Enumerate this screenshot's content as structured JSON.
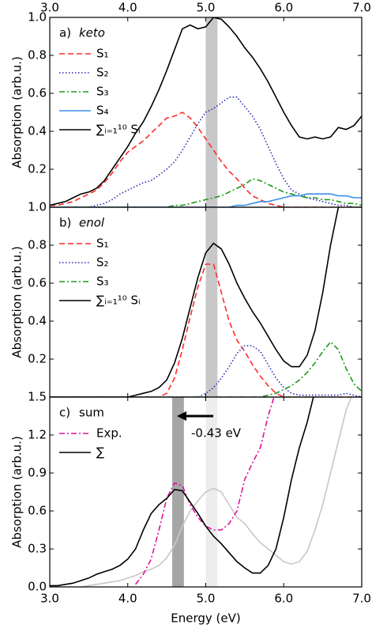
{
  "chart_data": [
    {
      "type": "line",
      "panel_label": "a)",
      "title": "keto",
      "ylabel": "Absorption (arb.u.)",
      "xlim": [
        3,
        7
      ],
      "xticks": [
        {
          "value": 3,
          "label": "3.0"
        },
        {
          "value": 4,
          "label": "4.0"
        },
        {
          "value": 5,
          "label": "5.0"
        },
        {
          "value": 6,
          "label": "6.0"
        },
        {
          "value": 7,
          "label": "7.0"
        }
      ],
      "ylim": [
        0,
        1
      ],
      "yticks": [
        0.2,
        0.4,
        0.6,
        0.8,
        {
          "value": 1,
          "label": "1.0"
        }
      ],
      "bands": [
        {
          "xlim": [
            5.0,
            5.15
          ],
          "color": "#b0b0b0"
        }
      ],
      "x": [
        3.0,
        3.1,
        3.2,
        3.3,
        3.4,
        3.5,
        3.6,
        3.7,
        3.8,
        3.9,
        4.0,
        4.1,
        4.2,
        4.3,
        4.4,
        4.5,
        4.6,
        4.7,
        4.8,
        4.9,
        5.0,
        5.1,
        5.2,
        5.3,
        5.4,
        5.5,
        5.6,
        5.7,
        5.8,
        5.9,
        6.0,
        6.1,
        6.2,
        6.3,
        6.4,
        6.5,
        6.6,
        6.7,
        6.8,
        6.9,
        7.0
      ],
      "series": [
        {
          "name": "S₁",
          "color": "#ff2a2a",
          "style": "dashed",
          "values": [
            0.01,
            0.01,
            0.02,
            0.03,
            0.05,
            0.07,
            0.09,
            0.13,
            0.18,
            0.24,
            0.29,
            0.32,
            0.35,
            0.39,
            0.43,
            0.47,
            0.48,
            0.5,
            0.47,
            0.42,
            0.36,
            0.3,
            0.24,
            0.19,
            0.15,
            0.1,
            0.06,
            0.04,
            0.02,
            0.01,
            0,
            0,
            0,
            0,
            0,
            0,
            0,
            0,
            0,
            0,
            0
          ]
        },
        {
          "name": "S₂",
          "color": "#2a2ab8",
          "style": "dotted",
          "values": [
            0,
            0,
            0,
            0,
            0,
            0,
            0.01,
            0.02,
            0.04,
            0.07,
            0.09,
            0.11,
            0.13,
            0.14,
            0.17,
            0.2,
            0.24,
            0.3,
            0.37,
            0.44,
            0.5,
            0.52,
            0.55,
            0.58,
            0.58,
            0.53,
            0.48,
            0.41,
            0.32,
            0.23,
            0.15,
            0.09,
            0.07,
            0.05,
            0.04,
            0.03,
            0.02,
            0.01,
            0.01,
            0,
            0
          ]
        },
        {
          "name": "S₃",
          "color": "#1a9a1a",
          "style": "dashdot",
          "values": [
            0,
            0,
            0,
            0,
            0,
            0,
            0,
            0,
            0,
            0,
            0,
            0,
            0,
            0,
            0,
            0,
            0.01,
            0.01,
            0.02,
            0.03,
            0.04,
            0.05,
            0.06,
            0.08,
            0.1,
            0.12,
            0.15,
            0.14,
            0.12,
            0.1,
            0.08,
            0.07,
            0.06,
            0.05,
            0.05,
            0.04,
            0.04,
            0.03,
            0.02,
            0.02,
            0.01
          ]
        },
        {
          "name": "S₄",
          "color": "#3a8ee8",
          "style": "solid",
          "values": [
            0,
            0,
            0,
            0,
            0,
            0,
            0,
            0,
            0,
            0,
            0,
            0,
            0,
            0,
            0,
            0,
            0,
            0,
            0,
            0,
            0,
            0,
            0,
            0,
            0.01,
            0.01,
            0.02,
            0.03,
            0.03,
            0.04,
            0.05,
            0.06,
            0.06,
            0.07,
            0.07,
            0.07,
            0.07,
            0.06,
            0.06,
            0.05,
            0.05
          ]
        },
        {
          "name": "∑ᵢ₌₁¹⁰ Sᵢ",
          "color": "#000000",
          "style": "solid",
          "values": [
            0.01,
            0.02,
            0.03,
            0.05,
            0.07,
            0.08,
            0.1,
            0.14,
            0.2,
            0.26,
            0.32,
            0.39,
            0.45,
            0.53,
            0.62,
            0.72,
            0.83,
            0.94,
            0.96,
            0.94,
            0.95,
            1.0,
            0.99,
            0.95,
            0.9,
            0.84,
            0.79,
            0.73,
            0.66,
            0.58,
            0.5,
            0.43,
            0.37,
            0.36,
            0.37,
            0.36,
            0.37,
            0.42,
            0.41,
            0.43,
            0.48
          ]
        }
      ]
    },
    {
      "type": "line",
      "panel_label": "b)",
      "title": "enol",
      "ylabel": "Absorption (arb.u.)",
      "xlim": [
        3,
        7
      ],
      "ylim": [
        0,
        1
      ],
      "yticks": [
        0.2,
        0.4,
        0.6,
        0.8,
        {
          "value": 1,
          "label": "1.0"
        }
      ],
      "bands": [
        {
          "xlim": [
            5.0,
            5.15
          ],
          "color": "#b0b0b0"
        }
      ],
      "x": [
        3.0,
        3.1,
        3.2,
        3.3,
        3.4,
        3.5,
        3.6,
        3.7,
        3.8,
        3.9,
        4.0,
        4.1,
        4.2,
        4.3,
        4.4,
        4.5,
        4.6,
        4.7,
        4.8,
        4.9,
        5.0,
        5.1,
        5.2,
        5.3,
        5.4,
        5.5,
        5.6,
        5.7,
        5.8,
        5.9,
        6.0,
        6.1,
        6.2,
        6.3,
        6.4,
        6.5,
        6.6,
        6.7,
        6.8,
        6.9,
        7.0
      ],
      "series": [
        {
          "name": "S₁",
          "color": "#ff2a2a",
          "style": "dashed",
          "values": [
            0,
            0,
            0,
            0,
            0,
            0,
            0,
            0,
            0,
            0,
            0,
            0,
            0,
            0,
            0,
            0.02,
            0.1,
            0.25,
            0.42,
            0.58,
            0.7,
            0.7,
            0.55,
            0.4,
            0.3,
            0.24,
            0.17,
            0.11,
            0.06,
            0.02,
            0,
            0,
            0,
            0,
            0,
            0,
            0,
            0,
            0,
            0,
            0
          ]
        },
        {
          "name": "S₂",
          "color": "#2a2ab8",
          "style": "dotted",
          "values": [
            0,
            0,
            0,
            0,
            0,
            0,
            0,
            0,
            0,
            0,
            0,
            0,
            0,
            0,
            0,
            0,
            0,
            0,
            0,
            0,
            0.02,
            0.05,
            0.1,
            0.16,
            0.23,
            0.27,
            0.27,
            0.24,
            0.17,
            0.1,
            0.05,
            0.02,
            0.01,
            0.01,
            0.01,
            0.01,
            0.01,
            0.01,
            0.02,
            0.01,
            0
          ]
        },
        {
          "name": "S₃",
          "color": "#1a9a1a",
          "style": "dashdot",
          "values": [
            0,
            0,
            0,
            0,
            0,
            0,
            0,
            0,
            0,
            0,
            0,
            0,
            0,
            0,
            0,
            0,
            0,
            0,
            0,
            0,
            0,
            0,
            0,
            0,
            0,
            0,
            0,
            0,
            0.01,
            0.02,
            0.04,
            0.06,
            0.09,
            0.13,
            0.18,
            0.24,
            0.29,
            0.25,
            0.15,
            0.07,
            0.03
          ]
        },
        {
          "name": "∑ᵢ₌₁¹⁰ Sᵢ",
          "color": "#000000",
          "style": "solid",
          "values": [
            0,
            0,
            0,
            0,
            0,
            0,
            0,
            0,
            0,
            0,
            0,
            0.01,
            0.02,
            0.03,
            0.05,
            0.09,
            0.18,
            0.31,
            0.47,
            0.63,
            0.76,
            0.81,
            0.78,
            0.7,
            0.6,
            0.52,
            0.45,
            0.39,
            0.32,
            0.25,
            0.19,
            0.16,
            0.16,
            0.22,
            0.35,
            0.55,
            0.8,
            1.0,
            null,
            null,
            null
          ]
        }
      ]
    },
    {
      "type": "line",
      "panel_label": "c)",
      "title": "sum",
      "ylabel": "Absorption (arb.u.)",
      "xlabel": "Energy (eV)",
      "xlim": [
        3,
        7
      ],
      "xticks": [
        {
          "value": 3,
          "label": "3.0"
        },
        {
          "value": 4,
          "label": "4.0"
        },
        {
          "value": 5,
          "label": "5.0"
        },
        {
          "value": 6,
          "label": "6.0"
        },
        {
          "value": 7,
          "label": "7.0"
        }
      ],
      "ylim": [
        0,
        1.5
      ],
      "yticks": [
        {
          "value": 0,
          "label": "0.0"
        },
        0.3,
        0.6,
        0.9,
        1.2,
        1.5
      ],
      "bands": [
        {
          "xlim": [
            4.57,
            4.72
          ],
          "color": "#808080"
        },
        {
          "xlim": [
            5.0,
            5.15
          ],
          "color": "#e6e6e6"
        }
      ],
      "annotation": "-0.43 eV",
      "x": [
        3.0,
        3.1,
        3.2,
        3.3,
        3.4,
        3.5,
        3.6,
        3.7,
        3.8,
        3.9,
        4.0,
        4.1,
        4.2,
        4.3,
        4.4,
        4.5,
        4.6,
        4.7,
        4.8,
        4.9,
        5.0,
        5.1,
        5.2,
        5.3,
        5.4,
        5.5,
        5.6,
        5.7,
        5.8,
        5.9,
        6.0,
        6.1,
        6.2,
        6.3,
        6.4,
        6.5,
        6.6,
        6.7,
        6.8,
        6.9,
        7.0
      ],
      "series": [
        {
          "color": "#c8c8c8",
          "style": "solid",
          "values": [
            0,
            0,
            0,
            0,
            0,
            0.01,
            0.02,
            0.03,
            0.04,
            0.05,
            0.07,
            0.09,
            0.12,
            0.14,
            0.17,
            0.23,
            0.33,
            0.48,
            0.6,
            0.68,
            0.75,
            0.78,
            0.75,
            0.65,
            0.55,
            0.5,
            0.42,
            0.35,
            0.3,
            0.25,
            0.2,
            0.18,
            0.2,
            0.28,
            0.45,
            0.65,
            0.9,
            1.15,
            1.4,
            1.55,
            null
          ]
        },
        {
          "name": "Exp.",
          "color": "#e0109a",
          "style": "dashdot",
          "values": [
            null,
            null,
            null,
            null,
            null,
            null,
            null,
            null,
            null,
            null,
            null,
            0.02,
            0.1,
            0.22,
            0.45,
            0.7,
            0.82,
            0.8,
            0.65,
            0.55,
            0.48,
            0.45,
            0.45,
            0.5,
            0.6,
            0.85,
            0.98,
            1.1,
            1.35,
            1.55,
            null,
            null,
            null,
            null,
            null,
            null,
            null,
            null,
            null,
            null,
            null
          ]
        },
        {
          "name": "∑",
          "color": "#000000",
          "style": "solid",
          "values": [
            0.01,
            0.01,
            0.02,
            0.03,
            0.05,
            0.07,
            0.1,
            0.12,
            0.14,
            0.17,
            0.22,
            0.3,
            0.45,
            0.58,
            0.65,
            0.7,
            0.77,
            0.76,
            0.67,
            0.58,
            0.48,
            0.4,
            0.34,
            0.27,
            0.2,
            0.15,
            0.11,
            0.11,
            0.17,
            0.3,
            0.55,
            0.85,
            1.1,
            1.3,
            1.55,
            null,
            null,
            null,
            null,
            null,
            null
          ]
        }
      ]
    }
  ]
}
